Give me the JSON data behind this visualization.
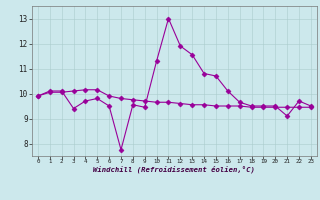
{
  "xlabel": "Windchill (Refroidissement éolien,°C)",
  "background_color": "#cce8ec",
  "line_color": "#990099",
  "x": [
    0,
    1,
    2,
    3,
    4,
    5,
    6,
    7,
    8,
    9,
    10,
    11,
    12,
    13,
    14,
    15,
    16,
    17,
    18,
    19,
    20,
    21,
    22,
    23
  ],
  "line1": [
    9.9,
    10.1,
    10.1,
    9.4,
    9.7,
    9.8,
    9.5,
    7.75,
    9.55,
    9.45,
    11.3,
    13.0,
    11.9,
    11.55,
    10.8,
    10.7,
    10.1,
    9.65,
    9.5,
    9.5,
    9.5,
    9.1,
    9.7,
    9.5
  ],
  "line2": [
    9.9,
    10.05,
    10.05,
    10.1,
    10.15,
    10.15,
    9.9,
    9.8,
    9.75,
    9.7,
    9.65,
    9.65,
    9.6,
    9.55,
    9.55,
    9.5,
    9.5,
    9.5,
    9.45,
    9.45,
    9.45,
    9.45,
    9.45,
    9.45
  ],
  "ylim": [
    7.5,
    13.5
  ],
  "yticks": [
    8,
    9,
    10,
    11,
    12,
    13
  ],
  "xticks": [
    0,
    1,
    2,
    3,
    4,
    5,
    6,
    7,
    8,
    9,
    10,
    11,
    12,
    13,
    14,
    15,
    16,
    17,
    18,
    19,
    20,
    21,
    22,
    23
  ],
  "xtick_labels": [
    "0",
    "1",
    "2",
    "3",
    "4",
    "5",
    "6",
    "7",
    "8",
    "9",
    "10",
    "11",
    "12",
    "13",
    "14",
    "15",
    "16",
    "17",
    "18",
    "19",
    "20",
    "21",
    "22",
    "23"
  ],
  "markersize": 2.5,
  "linewidth": 0.8
}
